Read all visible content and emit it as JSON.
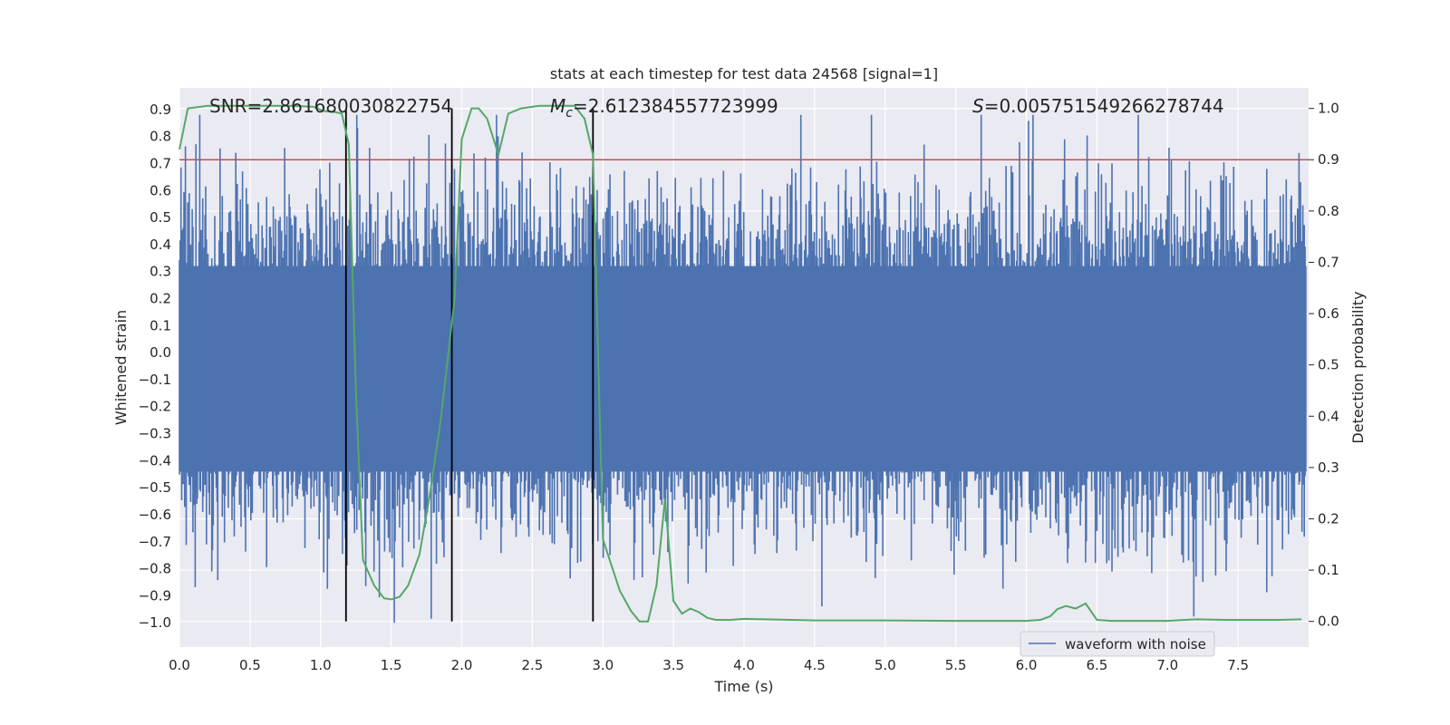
{
  "chart_data": {
    "type": "line",
    "title": "stats at each timestep for test data 24568 [signal=1]",
    "xlabel": "Time (s)",
    "ylabel_left": "Whitened strain",
    "ylabel_right": "Detection probability",
    "xlim": [
      0.0,
      8.0
    ],
    "ylim_left": [
      -1.09,
      0.98
    ],
    "ylim_right": [
      -0.05,
      1.04
    ],
    "x_ticks": [
      "0.0",
      "0.5",
      "1.0",
      "1.5",
      "2.0",
      "2.5",
      "3.0",
      "3.5",
      "4.0",
      "4.5",
      "5.0",
      "5.5",
      "6.0",
      "6.5",
      "7.0",
      "7.5"
    ],
    "y_ticks_left": [
      "0.9",
      "0.8",
      "0.7",
      "0.6",
      "0.5",
      "0.4",
      "0.3",
      "0.2",
      "0.1",
      "0.0",
      "−0.1",
      "−0.2",
      "−0.3",
      "−0.4",
      "−0.5",
      "−0.6",
      "−0.7",
      "−0.8",
      "−0.9",
      "−1.0"
    ],
    "y_ticks_right": [
      "1.0",
      "0.9",
      "0.8",
      "0.7",
      "0.6",
      "0.5",
      "0.4",
      "0.3",
      "0.2",
      "0.1",
      "0.0"
    ],
    "grid": true,
    "legend": {
      "placement": "lower-right",
      "entries": [
        "waveform with noise"
      ]
    },
    "annotations": {
      "snr": "SNR=2.861680030822754",
      "mc_symbol": "M",
      "mc_sub": "c",
      "mc_value": "=2.612384557723999",
      "s_symbol": "S",
      "s_value": "=0.005751549266278744"
    },
    "threshold": {
      "axis": "right",
      "value": 0.9,
      "color": "#c44e52"
    },
    "vlines": [
      1.18,
      1.93,
      2.93
    ],
    "waveform": {
      "name": "waveform with noise",
      "axis": "left",
      "color": "#4c72b0",
      "t_start": 0.0,
      "t_end": 7.98,
      "core_band": [
        -0.44,
        0.32
      ],
      "typical_extent": [
        -0.62,
        0.62
      ],
      "extreme_extent": [
        -1.0,
        0.88
      ]
    },
    "detection_probability": {
      "axis": "right",
      "color": "#55a868",
      "x": [
        0.0,
        0.06,
        0.2,
        0.4,
        0.6,
        0.8,
        0.95,
        1.02,
        1.1,
        1.15,
        1.2,
        1.25,
        1.3,
        1.38,
        1.45,
        1.5,
        1.56,
        1.62,
        1.7,
        1.77,
        1.85,
        1.95,
        2.0,
        2.07,
        2.12,
        2.18,
        2.26,
        2.33,
        2.42,
        2.55,
        2.7,
        2.8,
        2.87,
        2.93,
        3.0,
        3.06,
        3.12,
        3.2,
        3.26,
        3.32,
        3.38,
        3.44,
        3.5,
        3.56,
        3.62,
        3.68,
        3.74,
        3.8,
        3.9,
        4.0,
        4.5,
        5.0,
        5.5,
        5.8,
        6.0,
        6.1,
        6.17,
        6.22,
        6.28,
        6.35,
        6.42,
        6.5,
        6.6,
        6.8,
        7.0,
        7.2,
        7.4,
        7.6,
        7.8,
        7.95
      ],
      "y": [
        0.92,
        1.0,
        1.005,
        1.005,
        1.005,
        1.005,
        1.003,
        0.995,
        0.993,
        0.99,
        0.93,
        0.45,
        0.12,
        0.07,
        0.045,
        0.043,
        0.048,
        0.07,
        0.13,
        0.24,
        0.39,
        0.63,
        0.94,
        1.0,
        1.0,
        0.98,
        0.91,
        0.99,
        1.0,
        1.005,
        1.005,
        1.005,
        0.98,
        0.91,
        0.16,
        0.11,
        0.06,
        0.02,
        0.0,
        0.0,
        0.07,
        0.24,
        0.04,
        0.015,
        0.025,
        0.018,
        0.007,
        0.003,
        0.003,
        0.005,
        0.002,
        0.002,
        0.001,
        0.001,
        0.001,
        0.003,
        0.01,
        0.024,
        0.03,
        0.025,
        0.035,
        0.003,
        0.001,
        0.001,
        0.001,
        0.004,
        0.003,
        0.003,
        0.003,
        0.004
      ]
    }
  }
}
